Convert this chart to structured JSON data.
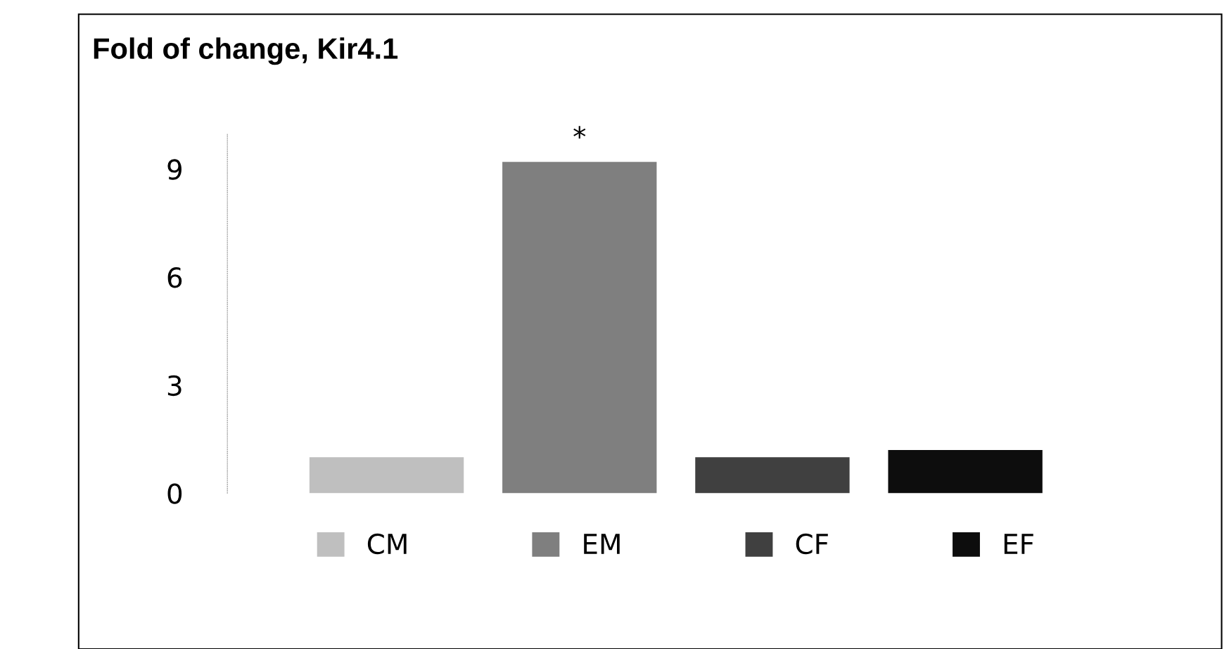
{
  "chart_data": {
    "type": "bar",
    "title": "Fold of change, Kir4.1",
    "categories": [
      null
    ],
    "series": [
      {
        "name": "CM",
        "color": "#bfbfbf",
        "values": [
          1.0
        ]
      },
      {
        "name": "EM",
        "color": "#7f7f7f",
        "values": [
          9.2
        ]
      },
      {
        "name": "CF",
        "color": "#404040",
        "values": [
          1.0
        ]
      },
      {
        "name": "EF",
        "color": "#0d0d0d",
        "values": [
          1.2
        ]
      }
    ],
    "annotations": [
      "*"
    ],
    "ylim": [
      0,
      10
    ],
    "yticks": [
      0,
      3,
      6,
      9
    ],
    "grid": false,
    "legend": "bottom"
  }
}
